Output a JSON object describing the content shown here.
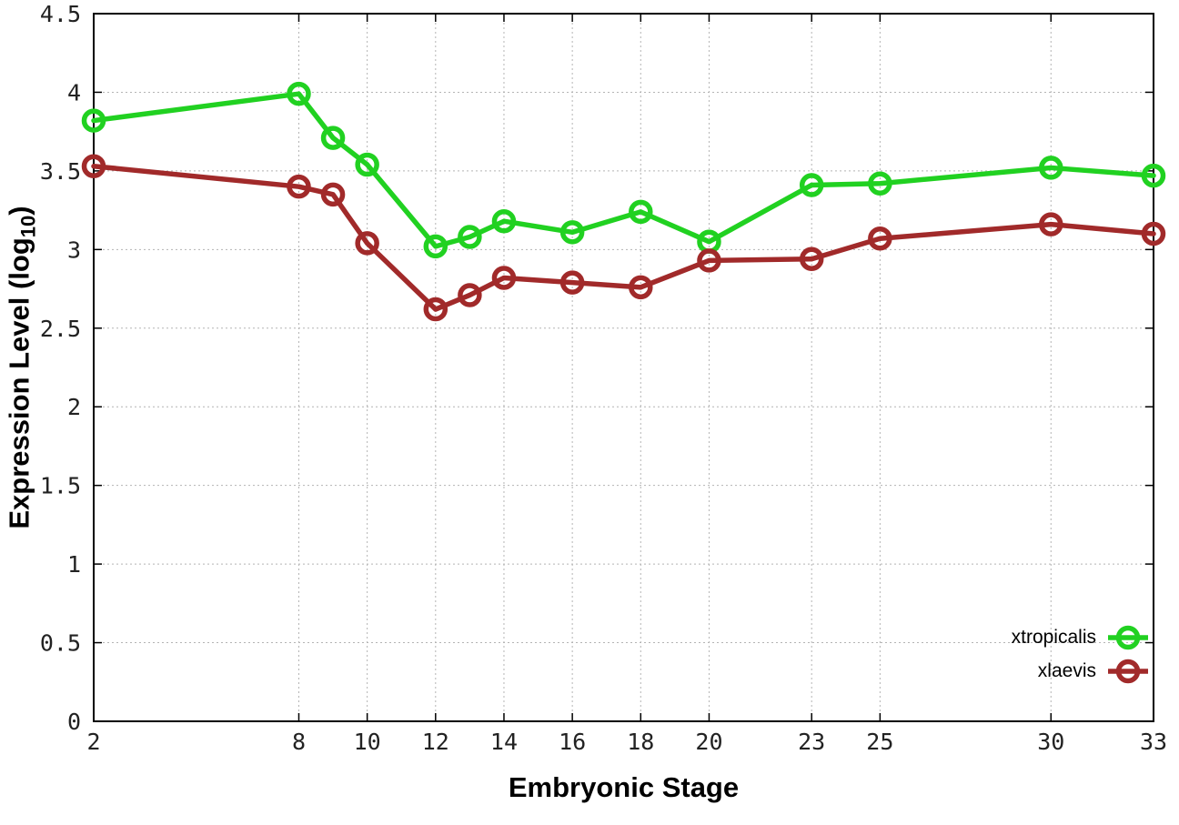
{
  "chart_data": {
    "type": "line",
    "title": "",
    "xlabel": "Embryonic Stage",
    "ylabel": {
      "text": "Expression Level (log",
      "sub": "10",
      "suffix": ")"
    },
    "xlim": [
      2,
      33
    ],
    "ylim": [
      0,
      4.5
    ],
    "x_ticks": [
      2,
      8,
      10,
      12,
      14,
      16,
      18,
      20,
      23,
      25,
      30,
      33
    ],
    "y_ticks": [
      0,
      0.5,
      1,
      1.5,
      2,
      2.5,
      3,
      3.5,
      4,
      4.5
    ],
    "grid": true,
    "grid_color": "#b4b4b4",
    "border_color": "#000000",
    "legend_position": "bottom-right-inside",
    "x": [
      2,
      8,
      9,
      10,
      12,
      13,
      14,
      16,
      18,
      20,
      23,
      25,
      30,
      33
    ],
    "series": [
      {
        "name": "xtropicalis",
        "color": "#21d121",
        "values": [
          3.82,
          3.99,
          3.71,
          3.54,
          3.02,
          3.08,
          3.18,
          3.11,
          3.24,
          3.05,
          3.41,
          3.42,
          3.52,
          3.47
        ]
      },
      {
        "name": "xlaevis",
        "color": "#a12a2a",
        "values": [
          3.53,
          3.4,
          3.35,
          3.04,
          2.62,
          2.71,
          2.82,
          2.79,
          2.76,
          2.93,
          2.94,
          3.07,
          3.16,
          3.1
        ]
      }
    ]
  }
}
